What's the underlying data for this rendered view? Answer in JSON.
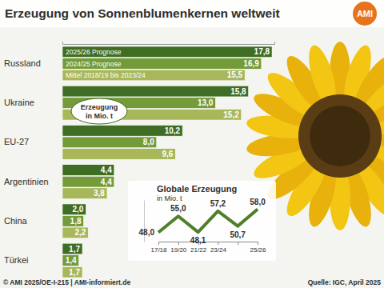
{
  "chart_data": [
    {
      "type": "bar",
      "title": "Erzeugung von Sonnenblumenkernen weltweit",
      "subtitle": "Erzeugung in Mio. t",
      "orientation": "horizontal",
      "categories": [
        "Russland",
        "Ukraine",
        "EU-27",
        "Argentinien",
        "China",
        "Türkei"
      ],
      "series": [
        {
          "name": "2025/26 Prognose",
          "color": "#3f6d24",
          "values": [
            17.8,
            15.8,
            10.2,
            4.4,
            2.0,
            1.7
          ],
          "value_labels": [
            "17,8",
            "15,8",
            "10,2",
            "4,4",
            "2,0",
            "1,7"
          ]
        },
        {
          "name": "2024/25 Prognose",
          "color": "#739b3a",
          "values": [
            16.9,
            13.0,
            8.0,
            4.4,
            1.8,
            1.4
          ],
          "value_labels": [
            "16,9",
            "13,0",
            "8,0",
            "4,4",
            "1,8",
            "1,4"
          ]
        },
        {
          "name": "Mittel 2018/19 bis 2023/24",
          "color": "#a8b75a",
          "values": [
            15.5,
            15.2,
            9.6,
            3.8,
            2.2,
            1.7
          ],
          "value_labels": [
            "15,5",
            "15,2",
            "9,6",
            "3,8",
            "2,2",
            "1,7"
          ]
        }
      ],
      "xlim": [
        0,
        18
      ],
      "xticks": [],
      "data_labels": true,
      "tick_labels": "y",
      "grid": false
    },
    {
      "type": "line",
      "title": "Globale Erzeugung",
      "subtitle": "in Mio. t",
      "categories": [
        "17/18",
        "19/20",
        "21/22",
        "23/24",
        null,
        "25/26"
      ],
      "values": [
        48.0,
        55.0,
        48.1,
        57.2,
        50.7,
        58.0
      ],
      "value_labels": [
        "48,0",
        "55,0",
        "48,1",
        "57,2",
        "50,7",
        "58,0"
      ],
      "color": "#4f7f2a",
      "ylim": [
        44,
        62
      ],
      "yticks": [],
      "data_labels": true,
      "tick_labels": "x",
      "grid": false,
      "marker": "none",
      "line_style": "solid"
    }
  ],
  "logo": "AMI",
  "footer": "© AMI 2025/OE-I-215 | AMI-informiert.de",
  "source": "Quelle: IGC, April 2025"
}
